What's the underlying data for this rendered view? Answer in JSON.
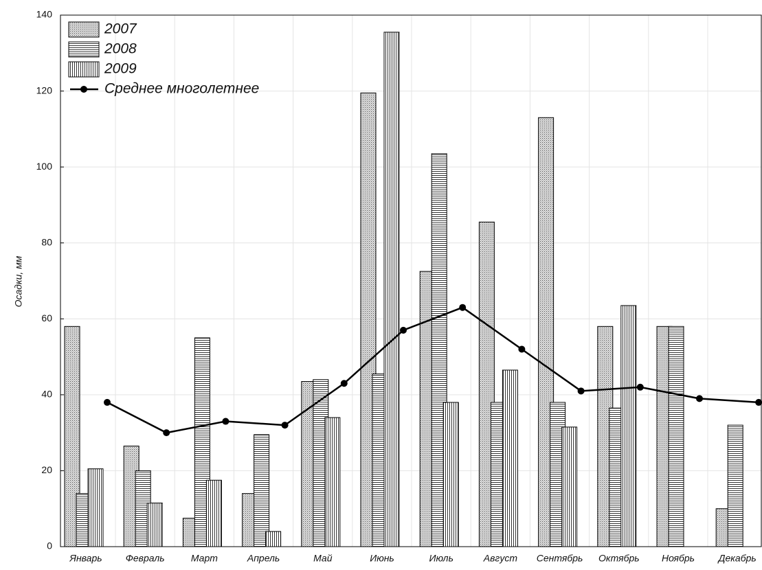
{
  "chart_data": {
    "type": "combo",
    "y_label": "Осадки, мм",
    "categories": [
      "Январь",
      "Февраль",
      "Март",
      "Апрель",
      "Май",
      "Июнь",
      "Июль",
      "Август",
      "Сентябрь",
      "Октябрь",
      "Ноябрь",
      "Декабрь"
    ],
    "series": [
      {
        "name": "2007",
        "type": "bar",
        "pattern": "dots",
        "color": "#777777",
        "values": [
          58,
          26.5,
          7.5,
          14,
          43.5,
          119.5,
          72.5,
          85.5,
          113,
          58,
          58,
          10
        ]
      },
      {
        "name": "2008",
        "type": "bar",
        "pattern": "hlines",
        "color": "#333333",
        "values": [
          14,
          20,
          55,
          29.5,
          44,
          45.5,
          103.5,
          38,
          38,
          36.5,
          58,
          32
        ]
      },
      {
        "name": "2009",
        "type": "bar",
        "pattern": "vlines",
        "color": "#333333",
        "values": [
          20.5,
          11.5,
          17.5,
          4,
          34,
          135.5,
          38,
          46.5,
          31.5,
          63.5,
          null,
          null
        ]
      },
      {
        "name": "Среднее многолетнее",
        "type": "line",
        "color": "#000000",
        "values": [
          38,
          30,
          33,
          32,
          43,
          57,
          63,
          52,
          41,
          42,
          39,
          38
        ]
      }
    ],
    "ylim": [
      0,
      140
    ],
    "yticks": [
      0,
      20,
      40,
      60,
      80,
      100,
      120,
      140
    ],
    "grid": true
  }
}
